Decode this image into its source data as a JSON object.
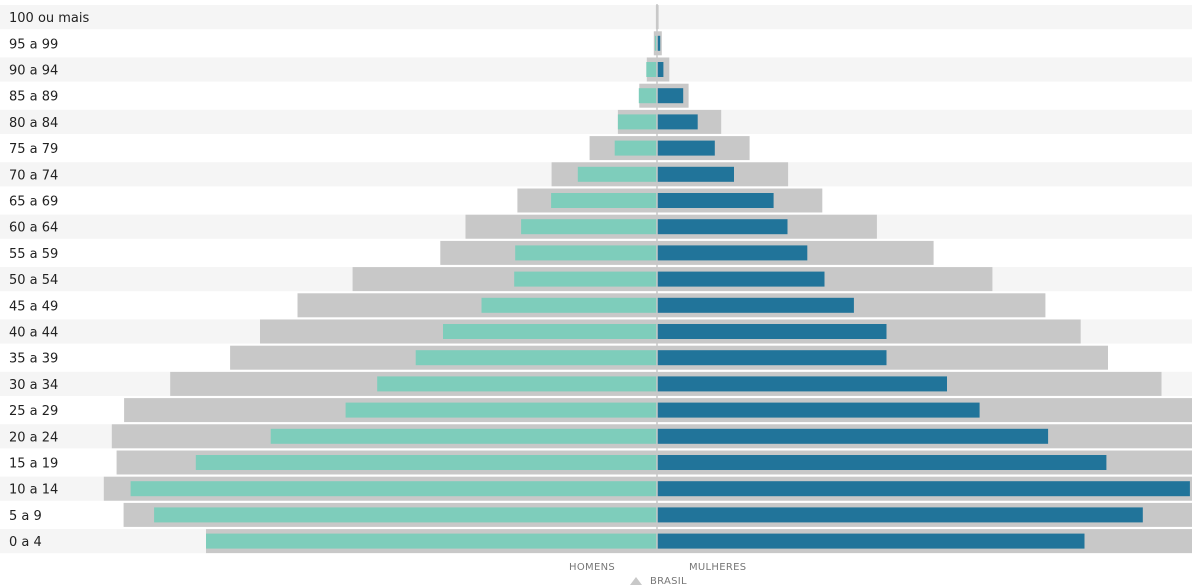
{
  "chart_data": {
    "type": "bar",
    "orientation": "horizontal-population-pyramid",
    "categories": [
      "100 ou mais",
      "95 a 99",
      "90 a 94",
      "85 a 89",
      "80 a 84",
      "75 a 79",
      "70 a 74",
      "65 a 69",
      "60 a 64",
      "55 a 59",
      "50 a 54",
      "45 a 49",
      "40 a 44",
      "35 a 39",
      "30 a 34",
      "25 a 29",
      "20 a 24",
      "15 a 19",
      "10 a 14",
      "5 a 9",
      "0 a 4"
    ],
    "series": [
      {
        "name": "HOMENS",
        "side": "left",
        "color": "#7ecdbb",
        "values": [
          0.0,
          0.04,
          0.2,
          0.34,
          0.73,
          0.79,
          1.48,
          1.98,
          2.54,
          2.65,
          2.67,
          3.28,
          4.0,
          4.51,
          5.23,
          5.82,
          7.22,
          8.62,
          9.84,
          9.4,
          8.43
        ]
      },
      {
        "name": "MULHERES",
        "side": "right",
        "color": "#21749a",
        "values": [
          0.0,
          0.06,
          0.12,
          0.49,
          0.76,
          1.08,
          1.44,
          2.18,
          2.44,
          2.81,
          3.13,
          3.68,
          4.29,
          4.29,
          5.42,
          6.03,
          7.31,
          8.4,
          9.96,
          9.08,
          7.99
        ]
      }
    ],
    "reference": {
      "name": "BRASIL",
      "color": "#c8c8c8",
      "male": [
        0.02,
        0.06,
        0.19,
        0.33,
        0.73,
        1.26,
        1.97,
        2.61,
        3.58,
        4.05,
        5.69,
        6.72,
        7.42,
        7.98,
        9.1,
        9.96,
        10.19,
        10.1,
        10.34,
        9.97,
        8.43
      ],
      "female": [
        0.03,
        0.09,
        0.23,
        0.59,
        1.2,
        1.73,
        2.45,
        3.09,
        4.11,
        5.17,
        6.27,
        7.26,
        7.92,
        8.43,
        9.43,
        10.0,
        10.0,
        10.0,
        10.0,
        10.0,
        10.0
      ]
    },
    "xlim": [
      -10.7,
      10.0
    ],
    "xlabel_left": "HOMENS",
    "xlabel_right": "MULHERES",
    "legend": {
      "marker": "triangle",
      "label": "BRASIL",
      "placement": "bottom-center"
    }
  }
}
